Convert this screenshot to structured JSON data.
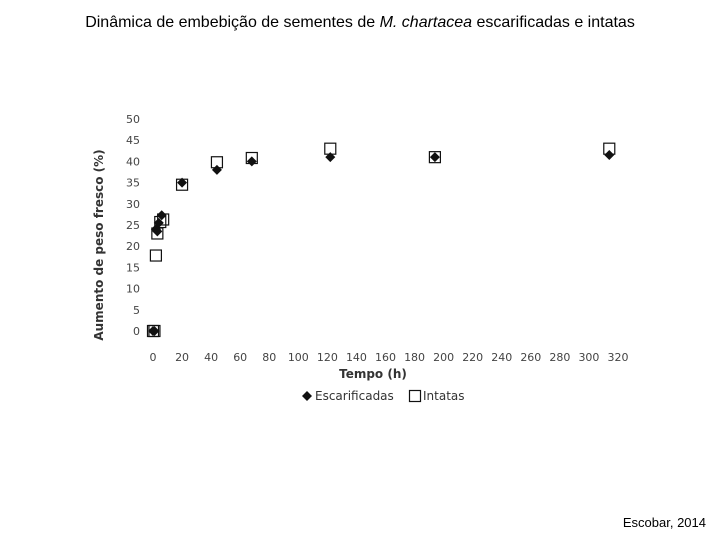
{
  "page": {
    "title_prefix": "Dinâmica de embebição de sementes de ",
    "title_species": "M. chartacea",
    "title_suffix": " escarificadas e intatas",
    "credit": "Escobar, 2014"
  },
  "chart_data": {
    "type": "scatter",
    "title": "",
    "xlabel": "Tempo (h)",
    "ylabel": "Aumento de peso fresco (%)",
    "xlim": [
      0,
      320
    ],
    "ylim": [
      0,
      50
    ],
    "xticks": [
      0,
      20,
      40,
      60,
      80,
      100,
      120,
      140,
      160,
      180,
      200,
      220,
      240,
      260,
      280,
      300,
      320
    ],
    "yticks": [
      0,
      5,
      10,
      15,
      20,
      25,
      30,
      35,
      40,
      45,
      50
    ],
    "grid": false,
    "legend_position": "bottom",
    "series": [
      {
        "name": "Escarificadas",
        "marker": "diamond",
        "color": "#111111",
        "points": [
          [
            0,
            0
          ],
          [
            1,
            0
          ],
          [
            2,
            24
          ],
          [
            3,
            23.5
          ],
          [
            4,
            25.5
          ],
          [
            6,
            27.3
          ],
          [
            20,
            35
          ],
          [
            44,
            38
          ],
          [
            68,
            40
          ],
          [
            122,
            41
          ],
          [
            194,
            41
          ],
          [
            314,
            41.5
          ]
        ]
      },
      {
        "name": "Intatas",
        "marker": "square",
        "color": "#111111",
        "points": [
          [
            0,
            0
          ],
          [
            1,
            0
          ],
          [
            2,
            17.8
          ],
          [
            3,
            23
          ],
          [
            5,
            25.7
          ],
          [
            7,
            26.3
          ],
          [
            20,
            34.5
          ],
          [
            44,
            39.8
          ],
          [
            68,
            40.8
          ],
          [
            122,
            43
          ],
          [
            194,
            41
          ],
          [
            314,
            43
          ]
        ]
      }
    ]
  }
}
